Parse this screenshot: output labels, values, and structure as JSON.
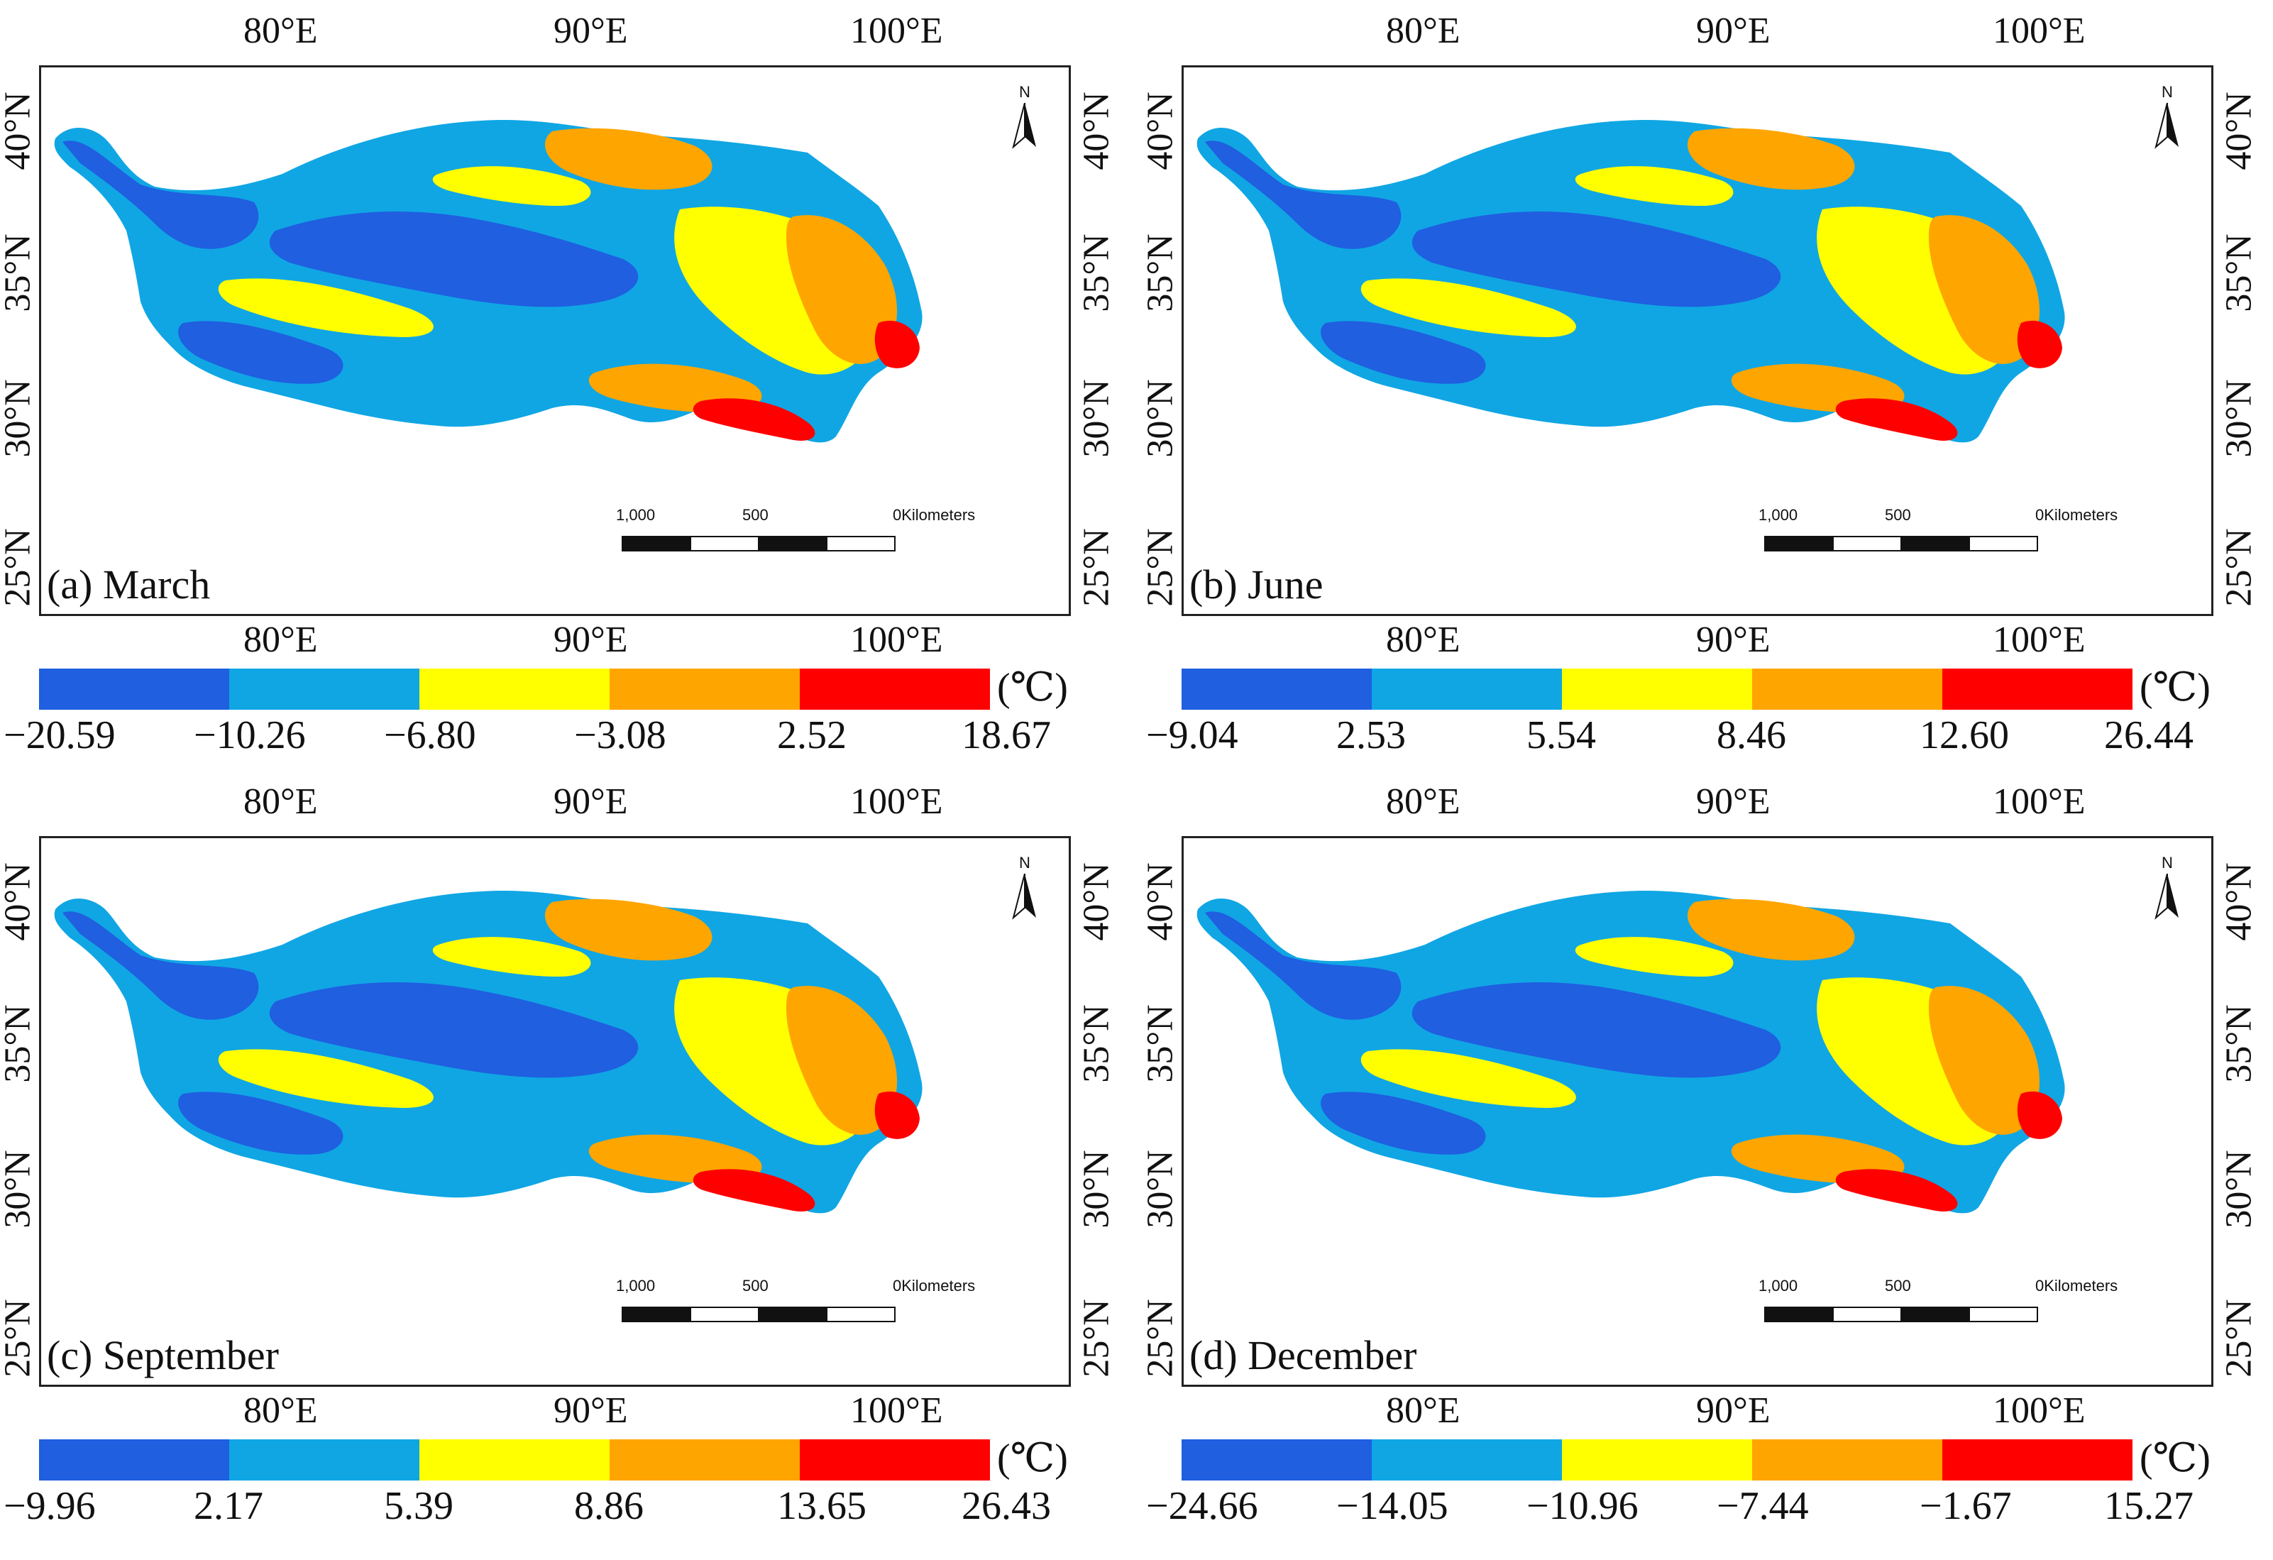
{
  "colors": {
    "class1": "#1f5fe0",
    "class2": "#10a6e4",
    "class3": "#ffff00",
    "class4": "#ffa500",
    "class5": "#ff0000"
  },
  "axes": {
    "lon_ticks": [
      "80°E",
      "90°E",
      "100°E"
    ],
    "lat_ticks": [
      "40°N",
      "35°N",
      "30°N",
      "25°N"
    ]
  },
  "north_arrow": {
    "letter": "N",
    "icon": "north-arrow-icon"
  },
  "scale_bar": {
    "labels": [
      "1,000",
      "500",
      "0Kilometers"
    ]
  },
  "legend_unit": "(℃)",
  "panels": [
    {
      "label": "(a) March",
      "breaks": [
        "−20.59",
        "−10.26",
        "−6.80",
        "−3.08",
        "2.52",
        "18.67"
      ]
    },
    {
      "label": "(b) June",
      "breaks": [
        "−9.04",
        "2.53",
        "5.54",
        "8.46",
        "12.60",
        "26.44"
      ]
    },
    {
      "label": "(c) September",
      "breaks": [
        "−9.96",
        "2.17",
        "5.39",
        "8.86",
        "13.65",
        "26.43"
      ]
    },
    {
      "label": "(d) December",
      "breaks": [
        "−24.66",
        "−14.05",
        "−10.96",
        "−7.44",
        "−1.67",
        "15.27"
      ]
    }
  ]
}
